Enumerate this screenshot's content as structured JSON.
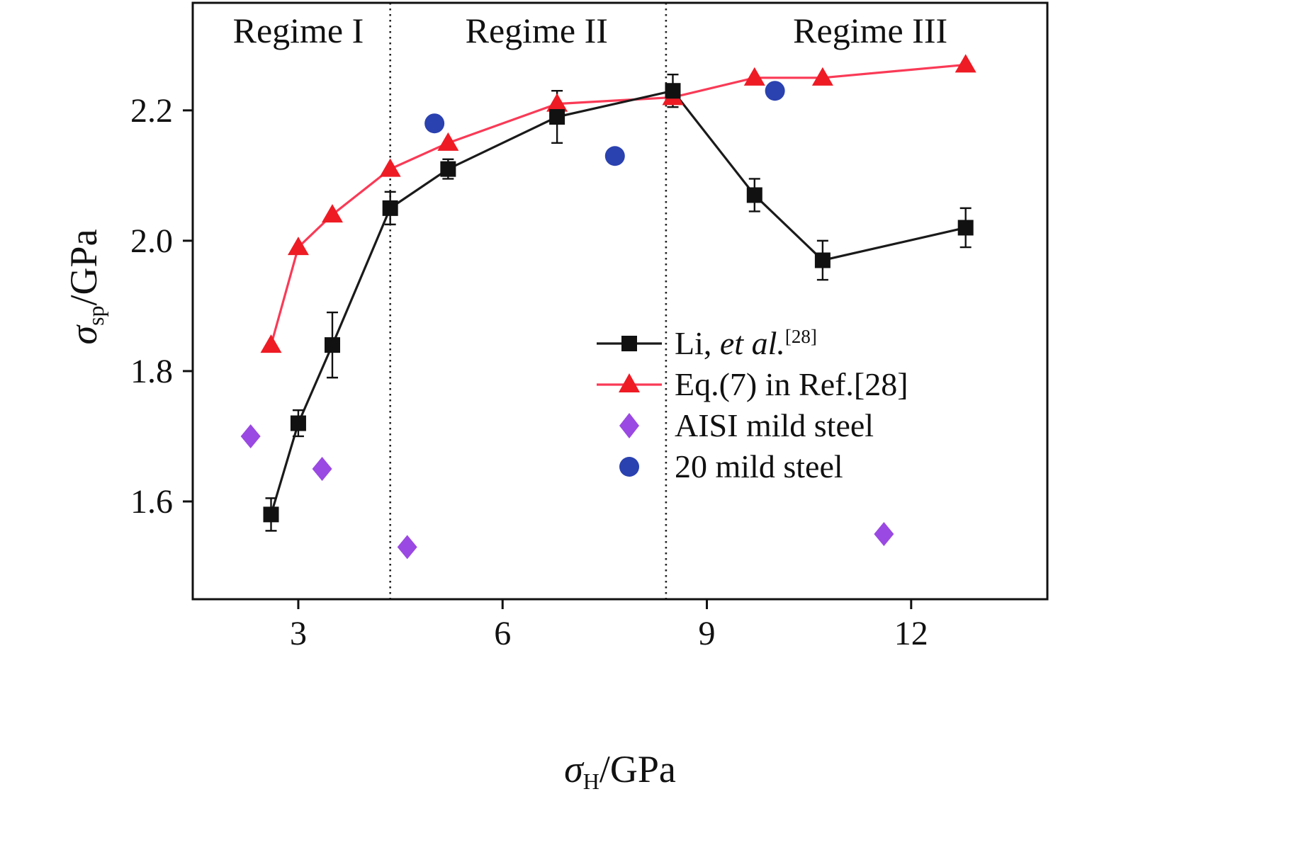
{
  "chart_data": {
    "type": "scatter",
    "title": "",
    "xlabel_parts": {
      "symbol": "σ",
      "subscript": "H",
      "unit": "/GPa"
    },
    "ylabel_parts": {
      "symbol": "σ",
      "subscript": "sp",
      "unit": "/GPa"
    },
    "xlim": [
      1.45,
      14.0
    ],
    "ylim": [
      1.45,
      2.365
    ],
    "xticks": [
      3,
      6,
      9,
      12
    ],
    "xtick_labels": [
      "3",
      "6",
      "9",
      "12"
    ],
    "yticks": [
      1.6,
      1.8,
      2.0,
      2.2
    ],
    "ytick_labels": [
      "1.6",
      "1.8",
      "2.0",
      "2.2"
    ],
    "grid": false,
    "legend_position": "inside-right-middle",
    "regime_boundaries": [
      4.35,
      8.4
    ],
    "regime_labels": [
      {
        "text": "Regime I",
        "x": 3.0
      },
      {
        "text": "Regime II",
        "x": 6.5
      },
      {
        "text": "Regime III",
        "x": 11.4
      }
    ],
    "series": [
      {
        "id": "eq7",
        "name": "Eq.(7) in Ref.[28]",
        "marker": "triangle",
        "line": true,
        "color": "#ee1b24",
        "line_color": "#fa3a56",
        "points": [
          [
            2.6,
            1.84
          ],
          [
            3.0,
            1.99
          ],
          [
            3.5,
            2.04
          ],
          [
            4.35,
            2.11
          ],
          [
            5.2,
            2.15
          ],
          [
            6.8,
            2.21
          ],
          [
            8.5,
            2.22
          ],
          [
            9.7,
            2.25
          ],
          [
            10.7,
            2.25
          ],
          [
            12.8,
            2.27
          ]
        ]
      },
      {
        "id": "li",
        "name": "Li, et al.[28]",
        "marker": "square",
        "line": true,
        "color": "#111111",
        "line_color": "#1a1a1a",
        "points": [
          [
            2.6,
            1.58
          ],
          [
            3.0,
            1.72
          ],
          [
            3.5,
            1.84
          ],
          [
            4.35,
            2.05
          ],
          [
            5.2,
            2.11
          ],
          [
            6.8,
            2.19
          ],
          [
            8.5,
            2.23
          ],
          [
            9.7,
            2.07
          ],
          [
            10.7,
            1.97
          ],
          [
            12.8,
            2.02
          ]
        ],
        "yerr": [
          0.025,
          0.02,
          0.05,
          0.025,
          0.015,
          0.04,
          0.025,
          0.025,
          0.03,
          0.03
        ]
      },
      {
        "id": "aisi",
        "name": "AISI mild steel",
        "marker": "diamond",
        "line": false,
        "color": "#9a49e2",
        "points": [
          [
            2.3,
            1.7
          ],
          [
            3.35,
            1.65
          ],
          [
            4.6,
            1.53
          ],
          [
            11.6,
            1.55
          ]
        ]
      },
      {
        "id": "steel20",
        "name": "20 mild steel",
        "marker": "circle",
        "line": false,
        "color": "#2a41b0",
        "points": [
          [
            5.0,
            2.18
          ],
          [
            7.65,
            2.13
          ],
          [
            10.0,
            2.23
          ]
        ]
      }
    ]
  },
  "legend": {
    "items": [
      {
        "label_prefix": "Li, ",
        "label_italic": "et al.",
        "label_sup": "[28]"
      },
      {
        "label": "Eq.(7) in Ref.[28]"
      },
      {
        "label": "AISI mild steel"
      },
      {
        "label": "20 mild steel"
      }
    ]
  }
}
